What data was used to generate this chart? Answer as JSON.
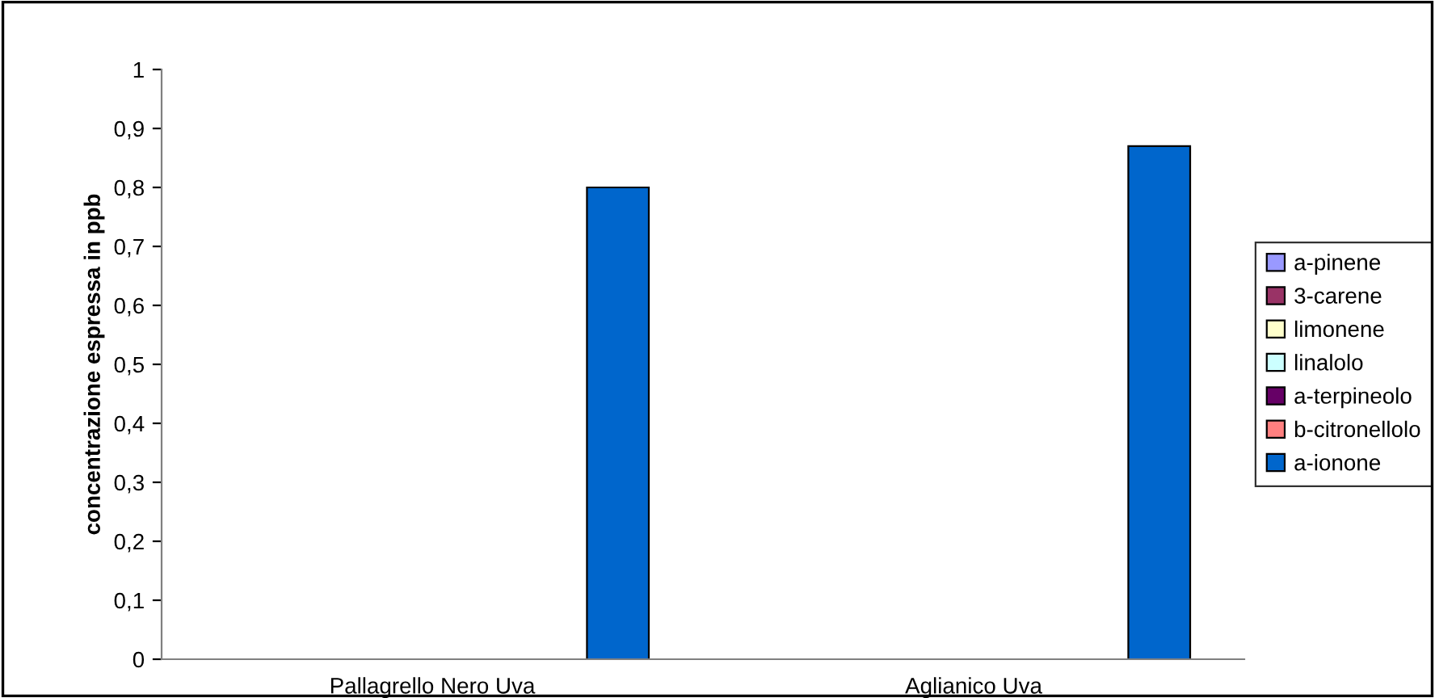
{
  "chart_data": {
    "type": "bar",
    "ylabel": "concentrazione espressa in ppb",
    "categories": [
      "Pallagrello Nero Uva",
      "Aglianico Uva"
    ],
    "series": [
      {
        "name": "a-pinene",
        "color": "#9999ff",
        "values": [
          0,
          0
        ]
      },
      {
        "name": "3-carene",
        "color": "#993366",
        "values": [
          0,
          0
        ]
      },
      {
        "name": "limonene",
        "color": "#ffffcc",
        "values": [
          0,
          0
        ]
      },
      {
        "name": "linalolo",
        "color": "#ccffff",
        "values": [
          0,
          0
        ]
      },
      {
        "name": "a-terpineolo",
        "color": "#660066",
        "values": [
          0,
          0
        ]
      },
      {
        "name": "b-citronellolo",
        "color": "#ff8080",
        "values": [
          0,
          0
        ]
      },
      {
        "name": "a-ionone",
        "color": "#0066cc",
        "values": [
          0.8,
          0.87
        ]
      }
    ],
    "ylim": [
      0,
      1
    ],
    "yticks": [
      0,
      {
        "value": 0.1,
        "label": "0,1"
      },
      {
        "value": 0.2,
        "label": "0,2"
      },
      {
        "value": 0.3,
        "label": "0,3"
      },
      {
        "value": 0.4,
        "label": "0,4"
      },
      {
        "value": 0.5,
        "label": "0,5"
      },
      {
        "value": 0.6,
        "label": "0,6"
      },
      {
        "value": 0.7,
        "label": "0,7"
      },
      {
        "value": 0.8,
        "label": "0,8"
      },
      {
        "value": 0.9,
        "label": "0,9"
      },
      1
    ],
    "grid": false,
    "legend": "right"
  }
}
